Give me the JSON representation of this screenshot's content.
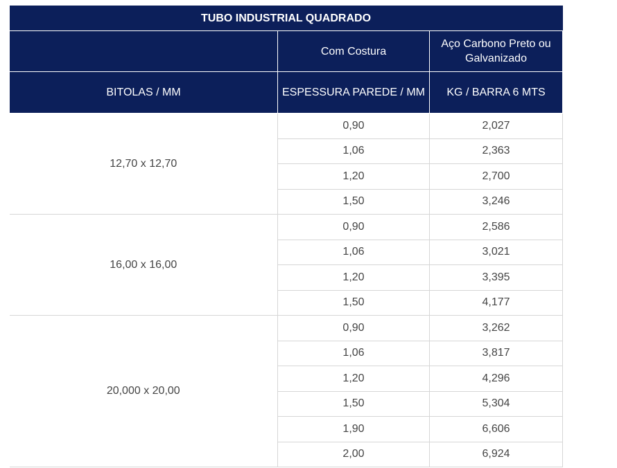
{
  "table": {
    "title": "TUBO INDUSTRIAL QUADRADO",
    "header_row1": {
      "col2": "Com Costura",
      "col3": "Aço Carbono Preto ou Galvanizado"
    },
    "header_row2": {
      "col1": "BITOLAS / MM",
      "col2": "ESPESSURA PAREDE / MM",
      "col3": "KG / BARRA 6 MTS"
    },
    "groups": [
      {
        "gauge": "12,70 x 12,70",
        "rows": [
          {
            "thickness": "0,90",
            "weight": "2,027"
          },
          {
            "thickness": "1,06",
            "weight": "2,363"
          },
          {
            "thickness": "1,20",
            "weight": "2,700"
          },
          {
            "thickness": "1,50",
            "weight": "3,246"
          }
        ]
      },
      {
        "gauge": "16,00 x 16,00",
        "rows": [
          {
            "thickness": "0,90",
            "weight": "2,586"
          },
          {
            "thickness": "1,06",
            "weight": "3,021"
          },
          {
            "thickness": "1,20",
            "weight": "3,395"
          },
          {
            "thickness": "1,50",
            "weight": "4,177"
          }
        ]
      },
      {
        "gauge": "20,000 x 20,00",
        "rows": [
          {
            "thickness": "0,90",
            "weight": "3,262"
          },
          {
            "thickness": "1,06",
            "weight": "3,817"
          },
          {
            "thickness": "1,20",
            "weight": "4,296"
          },
          {
            "thickness": "1,50",
            "weight": "5,304"
          },
          {
            "thickness": "1,90",
            "weight": "6,606"
          },
          {
            "thickness": "2,00",
            "weight": "6,924"
          }
        ]
      }
    ]
  }
}
